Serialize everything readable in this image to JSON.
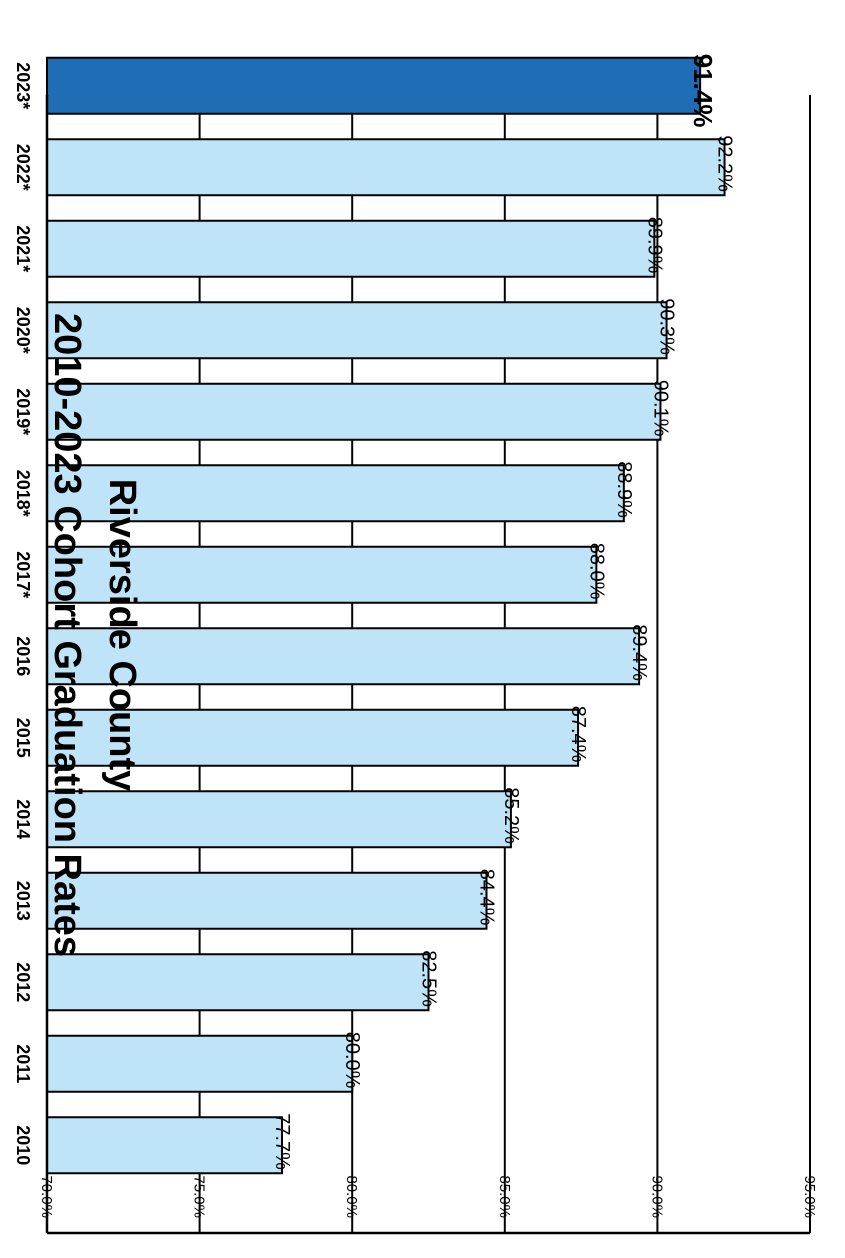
{
  "chart_data": {
    "type": "bar",
    "orientation": "vertical (rotated 90°)",
    "title_lines": [
      "2010-2023 Cohort Graduation Rates",
      "Riverside County"
    ],
    "categories": [
      "2010",
      "2011",
      "2012",
      "2013",
      "2014",
      "2015",
      "2016",
      "2017*",
      "2018*",
      "2019*",
      "2020*",
      "2021*",
      "2022*",
      "2023*"
    ],
    "values": [
      77.7,
      80.0,
      82.5,
      84.4,
      85.2,
      87.4,
      89.4,
      88.0,
      88.9,
      90.1,
      90.3,
      89.9,
      92.2,
      91.4
    ],
    "value_labels": [
      "77.7%",
      "80.0%",
      "82.5%",
      "84.4%",
      "85.2%",
      "87.4%",
      "89.4%",
      "88.0%",
      "88.9%",
      "90.1%",
      "90.3%",
      "89.9%",
      "92.2%",
      "91.4%"
    ],
    "highlight_index": 13,
    "ylim": [
      70,
      95
    ],
    "yticks": [
      70,
      75,
      80,
      85,
      90,
      95
    ],
    "ytick_labels": [
      "70.0%",
      "75.0%",
      "80.0%",
      "85.0%",
      "90.0%",
      "95.0%"
    ],
    "grid": true,
    "colors": {
      "bar": "#bfe3f7",
      "highlight": "#1f6db5",
      "outline": "#000000",
      "grid": "#000000"
    }
  }
}
